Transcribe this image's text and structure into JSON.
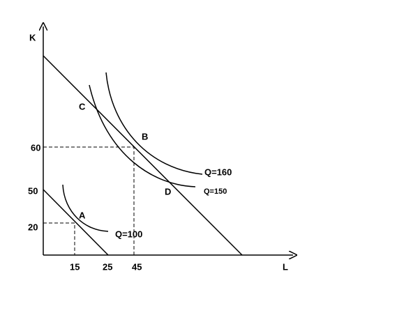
{
  "axes": {
    "y_label": "K",
    "x_label": "L"
  },
  "y_ticks": [
    "60",
    "50",
    "20"
  ],
  "x_ticks": [
    "15",
    "25",
    "45"
  ],
  "points": [
    "A",
    "B",
    "C",
    "D"
  ],
  "curves": [
    "Q=100",
    "Q=160",
    "Q=150"
  ]
}
